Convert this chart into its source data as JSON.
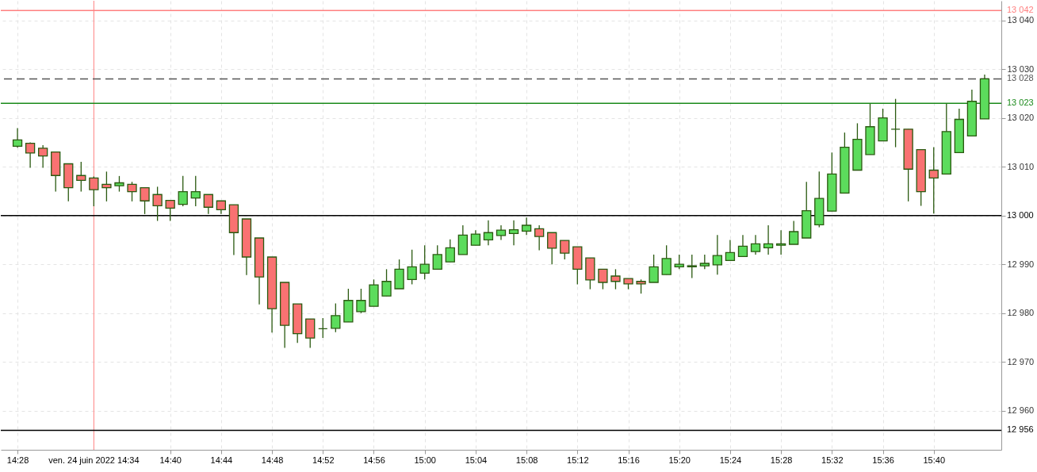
{
  "chart_data": {
    "type": "candlestick",
    "x": [
      "2022-06-24T14:28",
      "2022-06-24T14:29",
      "2022-06-24T14:30",
      "2022-06-24T14:31",
      "2022-06-24T14:32",
      "2022-06-24T14:33",
      "2022-06-24T14:34",
      "2022-06-24T14:35",
      "2022-06-24T14:36",
      "2022-06-24T14:37",
      "2022-06-24T14:38",
      "2022-06-24T14:39",
      "2022-06-24T14:40",
      "2022-06-24T14:41",
      "2022-06-24T14:42",
      "2022-06-24T14:43",
      "2022-06-24T14:44",
      "2022-06-24T14:45",
      "2022-06-24T14:46",
      "2022-06-24T14:47",
      "2022-06-24T14:48",
      "2022-06-24T14:49",
      "2022-06-24T14:50",
      "2022-06-24T14:51",
      "2022-06-24T14:52",
      "2022-06-24T14:53",
      "2022-06-24T14:54",
      "2022-06-24T14:55",
      "2022-06-24T14:56",
      "2022-06-24T14:57",
      "2022-06-24T14:58",
      "2022-06-24T14:59",
      "2022-06-24T15:00",
      "2022-06-24T15:01",
      "2022-06-24T15:02",
      "2022-06-24T15:03",
      "2022-06-24T15:04",
      "2022-06-24T15:05",
      "2022-06-24T15:06",
      "2022-06-24T15:07",
      "2022-06-24T15:08",
      "2022-06-24T15:09",
      "2022-06-24T15:10",
      "2022-06-24T15:11",
      "2022-06-24T15:12",
      "2022-06-24T15:13",
      "2022-06-24T15:14",
      "2022-06-24T15:15",
      "2022-06-24T15:16",
      "2022-06-24T15:17",
      "2022-06-24T15:18",
      "2022-06-24T15:19",
      "2022-06-24T15:20",
      "2022-06-24T15:21",
      "2022-06-24T15:22",
      "2022-06-24T15:23",
      "2022-06-24T15:24",
      "2022-06-24T15:25",
      "2022-06-24T15:26",
      "2022-06-24T15:27",
      "2022-06-24T15:28",
      "2022-06-24T15:29",
      "2022-06-24T15:30",
      "2022-06-24T15:31",
      "2022-06-24T15:32",
      "2022-06-24T15:33",
      "2022-06-24T15:34",
      "2022-06-24T15:35",
      "2022-06-24T15:36",
      "2022-06-24T15:37",
      "2022-06-24T15:38",
      "2022-06-24T15:39",
      "2022-06-24T15:40",
      "2022-06-24T15:41",
      "2022-06-24T15:42",
      "2022-06-24T15:43",
      "2022-06-24T15:44"
    ],
    "ohlc": [
      [
        13014.2,
        13017.9,
        13013.9,
        13015.5
      ],
      [
        13014.8,
        13015.0,
        13009.8,
        13012.8
      ],
      [
        13013.8,
        13014.4,
        13009.8,
        13012.2
      ],
      [
        13013.0,
        13013.0,
        13004.9,
        13008.2
      ],
      [
        13010.6,
        13010.6,
        13002.9,
        13005.7
      ],
      [
        13008.2,
        13011.0,
        13004.9,
        13007.2
      ],
      [
        13007.7,
        13008.0,
        13001.9,
        13005.3
      ],
      [
        13006.4,
        13009.0,
        13002.9,
        13005.7
      ],
      [
        13006.1,
        13008.1,
        13004.9,
        13006.7
      ],
      [
        13006.4,
        13006.9,
        13002.9,
        13004.9
      ],
      [
        13005.7,
        13005.7,
        13000.3,
        13003.0
      ],
      [
        13004.3,
        13005.9,
        12998.9,
        13002.0
      ],
      [
        13003.1,
        13003.1,
        12998.9,
        13001.5
      ],
      [
        13002.3,
        13008.1,
        13001.9,
        13004.9
      ],
      [
        13003.6,
        13008.1,
        13001.9,
        13004.9
      ],
      [
        13004.3,
        13004.3,
        13000.3,
        13001.7
      ],
      [
        13003.0,
        13003.0,
        13000.3,
        13001.2
      ],
      [
        13002.2,
        13002.2,
        12991.9,
        12996.5
      ],
      [
        12999.3,
        12999.3,
        12987.8,
        12991.5
      ],
      [
        12995.4,
        12995.4,
        12981.8,
        12987.4
      ],
      [
        12991.5,
        12991.5,
        12976.0,
        12980.9
      ],
      [
        12986.3,
        12986.3,
        12972.9,
        12977.5
      ],
      [
        12981.9,
        12981.9,
        12973.9,
        12975.8
      ],
      [
        12978.8,
        12978.8,
        12972.9,
        12974.9
      ],
      [
        12976.8,
        12979.0,
        12974.9,
        12976.8
      ],
      [
        12976.9,
        12982.0,
        12976.1,
        12979.5
      ],
      [
        12978.2,
        12985.0,
        12978.2,
        12982.6
      ],
      [
        12980.3,
        12985.0,
        12980.0,
        12982.6
      ],
      [
        12981.4,
        12986.9,
        12981.4,
        12985.8
      ],
      [
        12983.5,
        12989.0,
        12983.5,
        12986.5
      ],
      [
        12985.0,
        12991.0,
        12985.0,
        12989.0
      ],
      [
        12986.9,
        12993.0,
        12985.9,
        12989.5
      ],
      [
        12988.2,
        12993.9,
        12986.9,
        12990.0
      ],
      [
        12989.0,
        12993.9,
        12989.0,
        12992.0
      ],
      [
        12990.5,
        12995.1,
        12990.5,
        12993.4
      ],
      [
        12992.0,
        12998.0,
        12992.0,
        12996.0
      ],
      [
        12993.9,
        12997.0,
        12993.9,
        12996.2
      ],
      [
        12995.0,
        12999.0,
        12993.9,
        12996.5
      ],
      [
        12995.9,
        12998.0,
        12995.0,
        12997.0
      ],
      [
        12996.3,
        12999.0,
        12993.9,
        12997.1
      ],
      [
        12996.8,
        12999.6,
        12996.0,
        12998.0
      ],
      [
        12997.3,
        12998.0,
        12992.9,
        12995.7
      ],
      [
        12996.5,
        12996.5,
        12990.0,
        12993.3
      ],
      [
        12994.9,
        12994.9,
        12991.0,
        12992.3
      ],
      [
        12993.6,
        12993.6,
        12985.9,
        12989.0
      ],
      [
        12991.3,
        12991.3,
        12984.9,
        12986.8
      ],
      [
        12989.0,
        12989.0,
        12984.9,
        12986.3
      ],
      [
        12987.6,
        12989.0,
        12984.9,
        12986.5
      ],
      [
        12987.1,
        12987.1,
        12984.9,
        12986.0
      ],
      [
        12986.5,
        12986.9,
        12984.0,
        12986.0
      ],
      [
        12986.3,
        12992.0,
        12986.3,
        12989.5
      ],
      [
        12987.9,
        12993.9,
        12987.9,
        12991.2
      ],
      [
        12989.5,
        12992.0,
        12989.0,
        12990.0
      ],
      [
        12989.5,
        12992.0,
        12987.2,
        12989.7
      ],
      [
        12989.7,
        12992.0,
        12989.0,
        12990.2
      ],
      [
        12989.9,
        12996.0,
        12987.9,
        12991.8
      ],
      [
        12990.8,
        12995.0,
        12990.8,
        12992.4
      ],
      [
        12991.6,
        12996.0,
        12991.6,
        12993.7
      ],
      [
        12992.6,
        12996.0,
        12992.0,
        12994.2
      ],
      [
        12993.4,
        12998.0,
        12992.0,
        12994.2
      ],
      [
        12993.9,
        12997.0,
        12992.0,
        12994.2
      ],
      [
        12994.1,
        12998.9,
        12994.1,
        12996.7
      ],
      [
        12995.4,
        13006.9,
        12995.4,
        13001.0
      ],
      [
        12998.1,
        13009.0,
        12997.6,
        13003.5
      ],
      [
        13000.9,
        13012.9,
        13000.9,
        13008.5
      ],
      [
        13004.6,
        13017.0,
        13004.6,
        13014.0
      ],
      [
        13009.3,
        13018.9,
        13009.3,
        13015.6
      ],
      [
        13012.5,
        13022.9,
        13012.5,
        13018.2
      ],
      [
        13015.3,
        13021.9,
        13015.3,
        13020.0
      ],
      [
        13017.7,
        13023.9,
        13014.0,
        13017.7
      ],
      [
        13017.7,
        13017.7,
        13002.9,
        13009.5
      ],
      [
        13013.5,
        13013.5,
        13002.0,
        13004.9
      ],
      [
        13009.3,
        13014.0,
        13000.4,
        13007.7
      ],
      [
        13008.5,
        13022.9,
        13008.5,
        13017.2
      ],
      [
        13012.9,
        13021.9,
        13012.9,
        13019.7
      ],
      [
        13016.3,
        13025.8,
        13016.3,
        13023.4
      ],
      [
        13019.8,
        13028.9,
        13019.8,
        13028.0
      ]
    ],
    "colors": [
      "#5cdc5c",
      "#f97272",
      "#f97272",
      "#f97272",
      "#f97272",
      "#f97272",
      "#f97272",
      "#f97272",
      "#5cdc5c",
      "#f97272",
      "#f97272",
      "#f97272",
      "#f97272",
      "#5cdc5c",
      "#5cdc5c",
      "#f97272",
      "#f97272",
      "#f97272",
      "#f97272",
      "#f97272",
      "#f97272",
      "#f97272",
      "#f97272",
      "#f97272",
      "#2a5a10",
      "#5cdc5c",
      "#5cdc5c",
      "#5cdc5c",
      "#5cdc5c",
      "#5cdc5c",
      "#5cdc5c",
      "#5cdc5c",
      "#5cdc5c",
      "#5cdc5c",
      "#5cdc5c",
      "#5cdc5c",
      "#5cdc5c",
      "#5cdc5c",
      "#5cdc5c",
      "#5cdc5c",
      "#5cdc5c",
      "#f97272",
      "#f97272",
      "#f97272",
      "#f97272",
      "#f97272",
      "#f97272",
      "#f97272",
      "#f97272",
      "#f97272",
      "#5cdc5c",
      "#5cdc5c",
      "#5cdc5c",
      "#5cdc5c",
      "#5cdc5c",
      "#5cdc5c",
      "#5cdc5c",
      "#5cdc5c",
      "#5cdc5c",
      "#5cdc5c",
      "#5cdc5c",
      "#5cdc5c",
      "#5cdc5c",
      "#5cdc5c",
      "#5cdc5c",
      "#5cdc5c",
      "#5cdc5c",
      "#5cdc5c",
      "#5cdc5c",
      "#2a5a10",
      "#f97272",
      "#f97272",
      "#f97272",
      "#5cdc5c",
      "#5cdc5c",
      "#5cdc5c",
      "#5cdc5c"
    ],
    "xlim": [
      "2022-06-24T14:27",
      "2022-06-24T15:45"
    ],
    "xticks": [
      {
        "value": "2022-06-24T14:28",
        "label": "14:28"
      },
      {
        "value": "2022-06-24T14:40",
        "label": "14:40"
      },
      {
        "value": "2022-06-24T14:44",
        "label": "14:44"
      },
      {
        "value": "2022-06-24T14:48",
        "label": "14:48"
      },
      {
        "value": "2022-06-24T14:52",
        "label": "14:52"
      },
      {
        "value": "2022-06-24T14:56",
        "label": "14:56"
      },
      {
        "value": "2022-06-24T15:00",
        "label": "15:00"
      },
      {
        "value": "2022-06-24T15:04",
        "label": "15:04"
      },
      {
        "value": "2022-06-24T15:08",
        "label": "15:08"
      },
      {
        "value": "2022-06-24T15:12",
        "label": "15:12"
      },
      {
        "value": "2022-06-24T15:16",
        "label": "15:16"
      },
      {
        "value": "2022-06-24T15:20",
        "label": "15:20"
      },
      {
        "value": "2022-06-24T15:24",
        "label": "15:24"
      },
      {
        "value": "2022-06-24T15:28",
        "label": "15:28"
      },
      {
        "value": "2022-06-24T15:32",
        "label": "15:32"
      },
      {
        "value": "2022-06-24T15:36",
        "label": "15:36"
      },
      {
        "value": "2022-06-24T15:40",
        "label": "15:40"
      }
    ],
    "ylim": [
      12952,
      13044
    ],
    "yticks": [
      {
        "value": 12960,
        "label": "12 960"
      },
      {
        "value": 12970,
        "label": "12 970"
      },
      {
        "value": 12980,
        "label": "12 980"
      },
      {
        "value": 12990,
        "label": "12 990"
      },
      {
        "value": 13000,
        "label": null
      },
      {
        "value": 13010,
        "label": "13 010"
      },
      {
        "value": 13020,
        "label": "13 020"
      },
      {
        "value": 13030,
        "label": "13 030"
      },
      {
        "value": 13040,
        "label": "13 040"
      }
    ],
    "ref_lines": [
      {
        "axis": "x",
        "value": "2022-06-24T14:34",
        "label": "ven. 24 juin 2022 14:34",
        "color": "#ff8080"
      },
      {
        "axis": "y",
        "value": 13042,
        "label": "13 042",
        "color": "#ff8080"
      },
      {
        "axis": "y",
        "value": 13028,
        "label": "13 028",
        "color": "#555555",
        "line_style": "dashed"
      },
      {
        "axis": "y",
        "value": 13023,
        "label": "13 023",
        "color": "#1a8a1a"
      },
      {
        "axis": "y",
        "value": 13000,
        "label": "13 000",
        "color": "#000000"
      },
      {
        "axis": "y",
        "value": 12956,
        "label": "12 956",
        "color": "#000000"
      }
    ],
    "grid": true
  }
}
